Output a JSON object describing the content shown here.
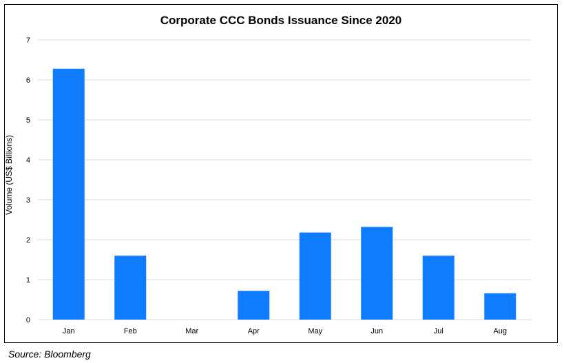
{
  "chart_data": {
    "type": "bar",
    "title": "Corporate CCC Bonds Issuance Since 2020",
    "xlabel": "",
    "ylabel": "Volume (US$ Billions)",
    "categories": [
      "Jan",
      "Feb",
      "Mar",
      "Apr",
      "May",
      "Jun",
      "Jul",
      "Aug"
    ],
    "values": [
      6.28,
      1.6,
      0,
      0.72,
      2.18,
      2.32,
      1.6,
      0.66
    ],
    "ylim": [
      0,
      7
    ],
    "yticks": [
      "0",
      "1",
      "2",
      "3",
      "4",
      "5",
      "6",
      "7"
    ],
    "grid": true,
    "legend": "none",
    "bar_color": "#0F7BFF",
    "grid_color": "#D9D9D9"
  },
  "footer": {
    "source": "Source: Bloomberg"
  }
}
